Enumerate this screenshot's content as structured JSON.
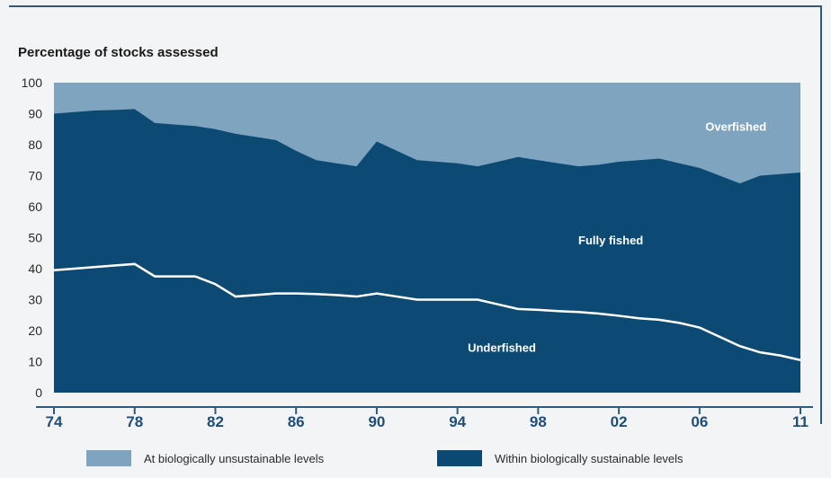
{
  "chart_data": {
    "type": "area",
    "ylabel": "Percentage of stocks assessed",
    "ylim": [
      0,
      100
    ],
    "yticks": [
      "0",
      "10",
      "20",
      "30",
      "40",
      "50",
      "60",
      "70",
      "80",
      "90",
      "100"
    ],
    "x_tick_labels": [
      "74",
      "78",
      "82",
      "86",
      "90",
      "94",
      "98",
      "02",
      "06",
      "11"
    ],
    "x_tick_values": [
      1974,
      1978,
      1982,
      1986,
      1990,
      1994,
      1998,
      2002,
      2006,
      2011
    ],
    "xlim": [
      1974,
      2011
    ],
    "series": [
      {
        "name": "Within biologically sustainable levels",
        "color": "#0d4a73",
        "x": [
          1974,
          1975,
          1976,
          1977,
          1978,
          1979,
          1980,
          1981,
          1982,
          1983,
          1984,
          1985,
          1986,
          1987,
          1988,
          1989,
          1990,
          1991,
          1992,
          1993,
          1994,
          1995,
          1996,
          1997,
          1998,
          1999,
          2000,
          2001,
          2002,
          2003,
          2004,
          2005,
          2006,
          2007,
          2008,
          2009,
          2010,
          2011
        ],
        "values": [
          90,
          90.5,
          91,
          91.2,
          91.5,
          87,
          86.5,
          86,
          85,
          83.5,
          82.5,
          81.5,
          78,
          75,
          74,
          73,
          81,
          78,
          75,
          74.5,
          74,
          73,
          74.5,
          76,
          75,
          74,
          73,
          73.5,
          74.5,
          75,
          75.5,
          74,
          72.5,
          70,
          67.5,
          70,
          70.5,
          71
        ]
      },
      {
        "name": "Underfished",
        "color": "#ffffff",
        "x": [
          1974,
          1975,
          1976,
          1977,
          1978,
          1979,
          1980,
          1981,
          1982,
          1983,
          1984,
          1985,
          1986,
          1987,
          1988,
          1989,
          1990,
          1991,
          1992,
          1993,
          1994,
          1995,
          1996,
          1997,
          1998,
          1999,
          2000,
          2001,
          2002,
          2003,
          2004,
          2005,
          2006,
          2007,
          2008,
          2009,
          2010,
          2011
        ],
        "values": [
          39.5,
          40,
          40.5,
          41,
          41.5,
          37.5,
          37.5,
          37.5,
          35,
          31,
          31.5,
          32,
          32,
          31.8,
          31.5,
          31,
          32,
          31,
          30,
          30,
          30,
          30,
          28.5,
          27,
          26.7,
          26.3,
          26,
          25.5,
          24.8,
          24,
          23.5,
          22.5,
          21,
          18,
          15,
          13,
          12,
          10.5
        ]
      }
    ],
    "area_labels": {
      "overfished": "Overfished",
      "fully_fished": "Fully fished",
      "underfished": "Underfished"
    },
    "colors": {
      "unsustainable": "#7ea4bf",
      "sustainable": "#0d4a73",
      "underfished_line": "#ffffff"
    },
    "legend": [
      {
        "label": "At biologically unsustainable levels",
        "color": "#7ea4bf"
      },
      {
        "label": "Within biologically sustainable levels",
        "color": "#0d4a73"
      }
    ],
    "grid": false,
    "legend_position": "bottom"
  }
}
